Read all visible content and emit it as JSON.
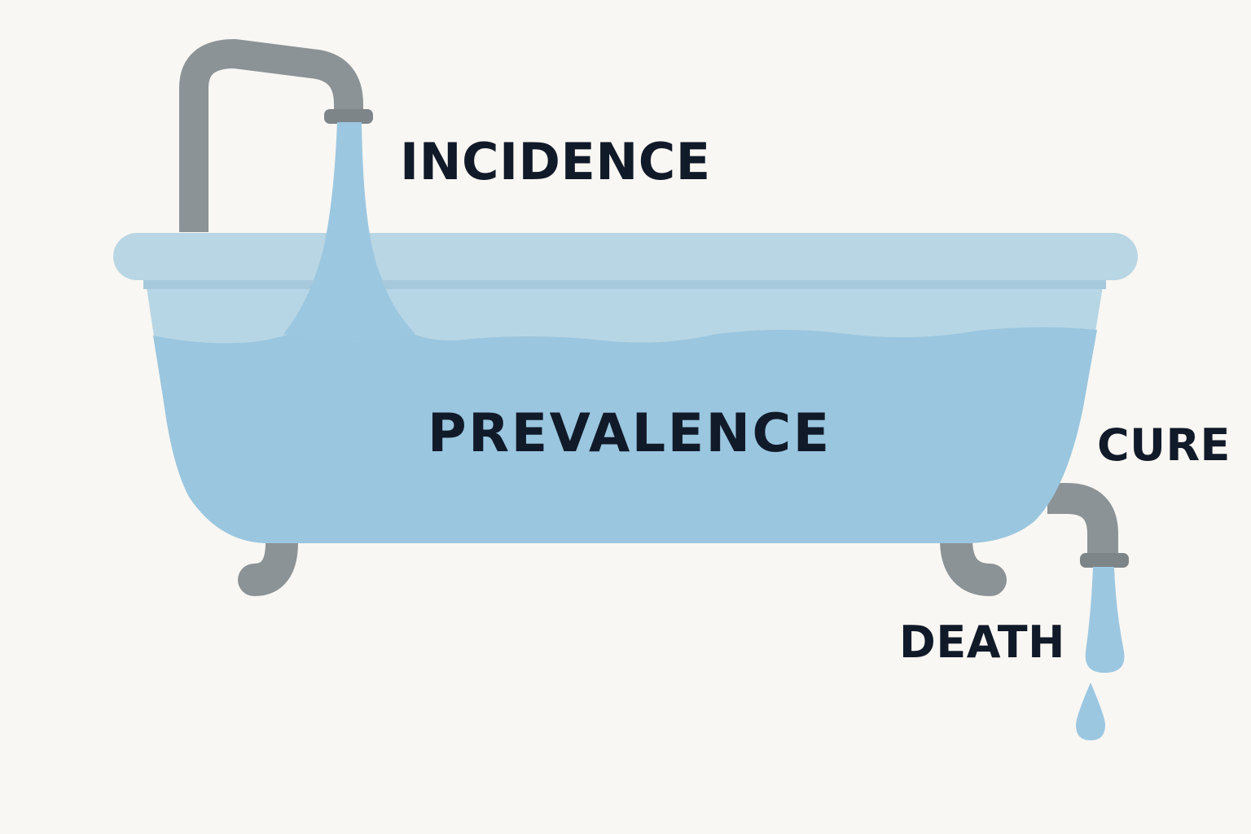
{
  "labels": {
    "inflow": "INCIDENCE",
    "stock": "PREVALENCE",
    "outflow_1": "CURE",
    "outflow_2": "DEATH"
  },
  "colors": {
    "background": "#f9f7f3",
    "text": "#111a29",
    "pipe": "#8c9396",
    "tub_rim": "#b8d6e4",
    "tub_body": "#b7d6e5",
    "water": "#9ac6df",
    "stream": "#9cc7e1"
  },
  "icons": {
    "faucet": "faucet-icon",
    "tub": "bathtub-icon",
    "drain": "drain-pipe-icon",
    "drop": "water-drop-icon"
  }
}
